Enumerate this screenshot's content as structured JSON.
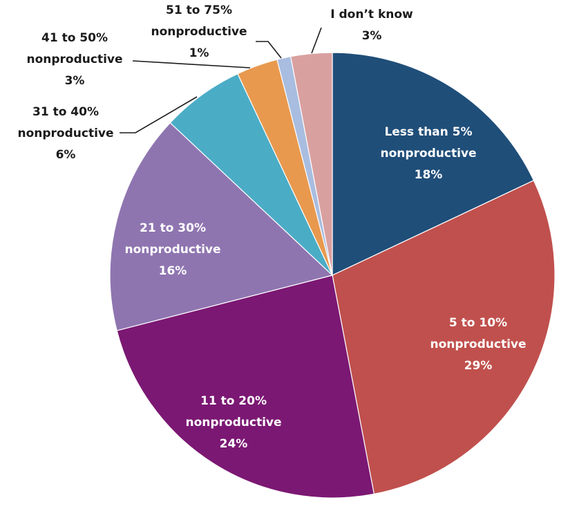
{
  "chart_data": {
    "type": "pie",
    "start": "12 o'clock",
    "direction": "clockwise",
    "slices": [
      {
        "line1": "Less than 5%",
        "line2": "nonproductive",
        "pct_label": "18%",
        "value": 18,
        "color": "#1f4e79"
      },
      {
        "line1": "5 to 10%",
        "line2": "nonproductive",
        "pct_label": "29%",
        "value": 29,
        "color": "#c0504d"
      },
      {
        "line1": "11 to 20%",
        "line2": "nonproductive",
        "pct_label": "24%",
        "value": 24,
        "color": "#7b1873"
      },
      {
        "line1": "21 to 30%",
        "line2": "nonproductive",
        "pct_label": "16%",
        "value": 16,
        "color": "#8f75b0"
      },
      {
        "line1": "31 to 40%",
        "line2": "nonproductive",
        "pct_label": "6%",
        "value": 6,
        "color": "#4bacc6"
      },
      {
        "line1": "41 to 50%",
        "line2": "nonproductive",
        "pct_label": "3%",
        "value": 3,
        "color": "#e8994e"
      },
      {
        "line1": "51 to 75%",
        "line2": "nonproductive",
        "pct_label": "1%",
        "value": 1,
        "color": "#a9bde0"
      },
      {
        "line1": "I don’t know",
        "line2": "",
        "pct_label": "3%",
        "value": 3,
        "color": "#d9a0a0"
      }
    ]
  }
}
